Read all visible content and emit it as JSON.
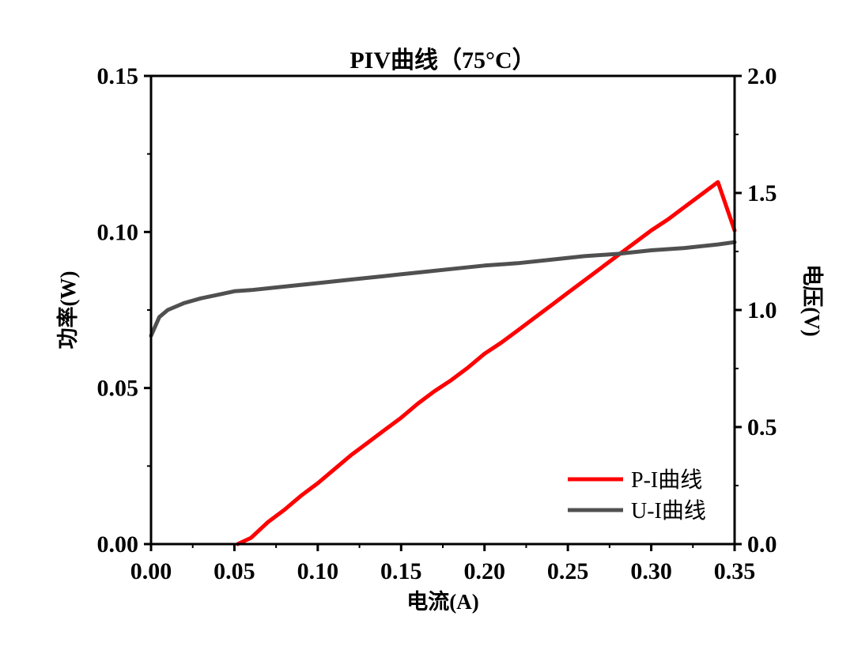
{
  "chart_data": {
    "type": "line",
    "title": "PIV曲线（75°C）",
    "xlabel": "电流(A)",
    "ylabel_left": "功率(W)",
    "ylabel_right": "电压(V)",
    "xlim": [
      0,
      0.35
    ],
    "ylim_left": [
      0,
      0.15
    ],
    "ylim_right": [
      0,
      2.0
    ],
    "x_ticks": [
      "0.00",
      "0.05",
      "0.10",
      "0.15",
      "0.20",
      "0.25",
      "0.30",
      "0.35"
    ],
    "y_left_ticks": [
      "0.00",
      "0.05",
      "0.10",
      "0.15"
    ],
    "y_right_ticks": [
      "0.0",
      "0.5",
      "1.0",
      "1.5",
      "2.0"
    ],
    "grid": false,
    "legend_position": "bottom-right",
    "series": [
      {
        "name": "P-I曲线",
        "axis": "left",
        "color": "#ff0000",
        "x": [
          0.052,
          0.06,
          0.07,
          0.08,
          0.09,
          0.1,
          0.11,
          0.12,
          0.13,
          0.14,
          0.15,
          0.16,
          0.17,
          0.18,
          0.19,
          0.2,
          0.21,
          0.22,
          0.23,
          0.24,
          0.25,
          0.26,
          0.27,
          0.28,
          0.29,
          0.3,
          0.31,
          0.32,
          0.33,
          0.34,
          0.35
        ],
        "y": [
          0.0,
          0.002,
          0.007,
          0.011,
          0.0155,
          0.0195,
          0.024,
          0.0285,
          0.0325,
          0.0365,
          0.0405,
          0.045,
          0.049,
          0.0525,
          0.0565,
          0.061,
          0.0645,
          0.0685,
          0.0725,
          0.0765,
          0.0805,
          0.0845,
          0.0885,
          0.0925,
          0.0965,
          0.1005,
          0.104,
          0.108,
          0.112,
          0.116,
          0.1005
        ]
      },
      {
        "name": "U-I曲线",
        "axis": "right",
        "color": "#505050",
        "x": [
          0.0,
          0.005,
          0.01,
          0.02,
          0.03,
          0.04,
          0.05,
          0.06,
          0.08,
          0.1,
          0.12,
          0.14,
          0.16,
          0.18,
          0.2,
          0.22,
          0.24,
          0.26,
          0.28,
          0.3,
          0.32,
          0.34,
          0.35
        ],
        "y": [
          0.89,
          0.97,
          1.0,
          1.03,
          1.05,
          1.065,
          1.08,
          1.085,
          1.1,
          1.115,
          1.13,
          1.145,
          1.16,
          1.175,
          1.19,
          1.2,
          1.215,
          1.23,
          1.24,
          1.255,
          1.265,
          1.28,
          1.29
        ]
      }
    ]
  }
}
